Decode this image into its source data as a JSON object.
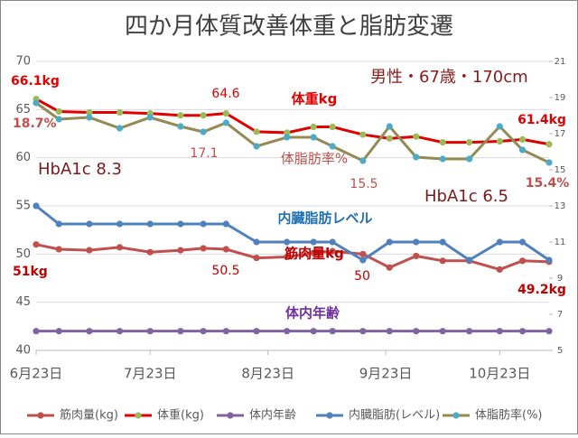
{
  "chart_data": {
    "type": "line",
    "title": "四か月体質改善体重と脂肪変遷",
    "annotations": [
      "男性・67歳・170cm",
      "HbA1c 8.3",
      "HbA1c 6.5",
      "体重kg",
      "体脂肪率%",
      "内臓脂肪レベル",
      "筋肉量kg",
      "体内年齢"
    ],
    "x": [
      0,
      6,
      14,
      22,
      30,
      38,
      44,
      50,
      58,
      66,
      73,
      78,
      86,
      93,
      100,
      107,
      114,
      122,
      128,
      135
    ],
    "xlim": [
      0,
      135
    ],
    "xticks": [
      {
        "value": 0,
        "label": "6月23日"
      },
      {
        "value": 30,
        "label": "7月23日"
      },
      {
        "value": 61,
        "label": "8月23日"
      },
      {
        "value": 92,
        "label": "9月23日"
      },
      {
        "value": 122,
        "label": "10月23日"
      }
    ],
    "ylim": [
      40,
      70
    ],
    "yticks": [
      40,
      45,
      50,
      55,
      60,
      65,
      70
    ],
    "y2lim": [
      5,
      21
    ],
    "y2ticks": [
      5,
      7,
      9,
      11,
      13,
      15,
      17,
      19,
      21
    ],
    "grid": true,
    "legend": "bottom",
    "series": [
      {
        "name": "筋肉量(kg)",
        "color": "#c0504d",
        "marker_color": "#c0504d",
        "values": [
          51,
          50.5,
          50.4,
          50.7,
          50.2,
          50.4,
          50.6,
          50.5,
          49.6,
          49.7,
          50.1,
          50.3,
          50,
          48.6,
          49.8,
          49.3,
          49.3,
          48.4,
          49.3,
          49.2
        ],
        "value_labels": [
          "51kg",
          null,
          null,
          null,
          null,
          null,
          null,
          "50.5",
          null,
          null,
          null,
          null,
          "50",
          null,
          null,
          null,
          null,
          null,
          null,
          "49.2kg"
        ]
      },
      {
        "name": "体重(kg)",
        "color": "#e00000",
        "marker_color": "#9bbb59",
        "values": [
          66.1,
          64.8,
          64.7,
          64.7,
          64.6,
          64.4,
          64.4,
          64.6,
          62.7,
          62.6,
          63.2,
          63.2,
          62.4,
          62.0,
          62.2,
          61.6,
          61.6,
          61.7,
          61.9,
          61.4
        ],
        "value_labels": [
          "66.1kg",
          null,
          null,
          null,
          null,
          null,
          null,
          "64.6",
          null,
          null,
          null,
          null,
          null,
          null,
          null,
          null,
          null,
          null,
          null,
          "61.4kg"
        ]
      },
      {
        "name": "体内年齢",
        "color": "#8064a2",
        "marker_color": "#8064a2",
        "values": [
          42,
          42,
          42,
          42,
          42,
          42,
          42,
          42,
          42,
          42,
          42,
          42,
          42,
          42,
          42,
          42,
          42,
          42,
          42,
          42
        ],
        "value_labels": [
          null,
          null,
          null,
          null,
          null,
          null,
          null,
          null,
          null,
          null,
          null,
          null,
          null,
          null,
          null,
          null,
          null,
          null,
          null,
          null
        ]
      },
      {
        "name": "内臓脂肪(レベル)",
        "color": "#4f81bd",
        "marker_color": "#4f81bd",
        "axis": "y2",
        "values": [
          13,
          12,
          12,
          12,
          12,
          12,
          12,
          12,
          11,
          11,
          11,
          11,
          10,
          11,
          11,
          11,
          10,
          11,
          11,
          10
        ]
      },
      {
        "name": "体脂肪率(%)",
        "color": "#948a54",
        "marker_color": "#4bacc6",
        "axis": "y2",
        "values": [
          18.7,
          17.8,
          17.9,
          17.3,
          17.9,
          17.4,
          17.1,
          17.6,
          16.3,
          16.8,
          16.8,
          16.3,
          15.5,
          17.4,
          15.7,
          15.6,
          15.6,
          17.4,
          16.1,
          15.4
        ],
        "value_labels": [
          "18.7%",
          null,
          null,
          null,
          null,
          null,
          "17.1",
          null,
          null,
          null,
          null,
          null,
          "15.5",
          null,
          null,
          null,
          null,
          null,
          null,
          "15.4%"
        ]
      }
    ]
  }
}
